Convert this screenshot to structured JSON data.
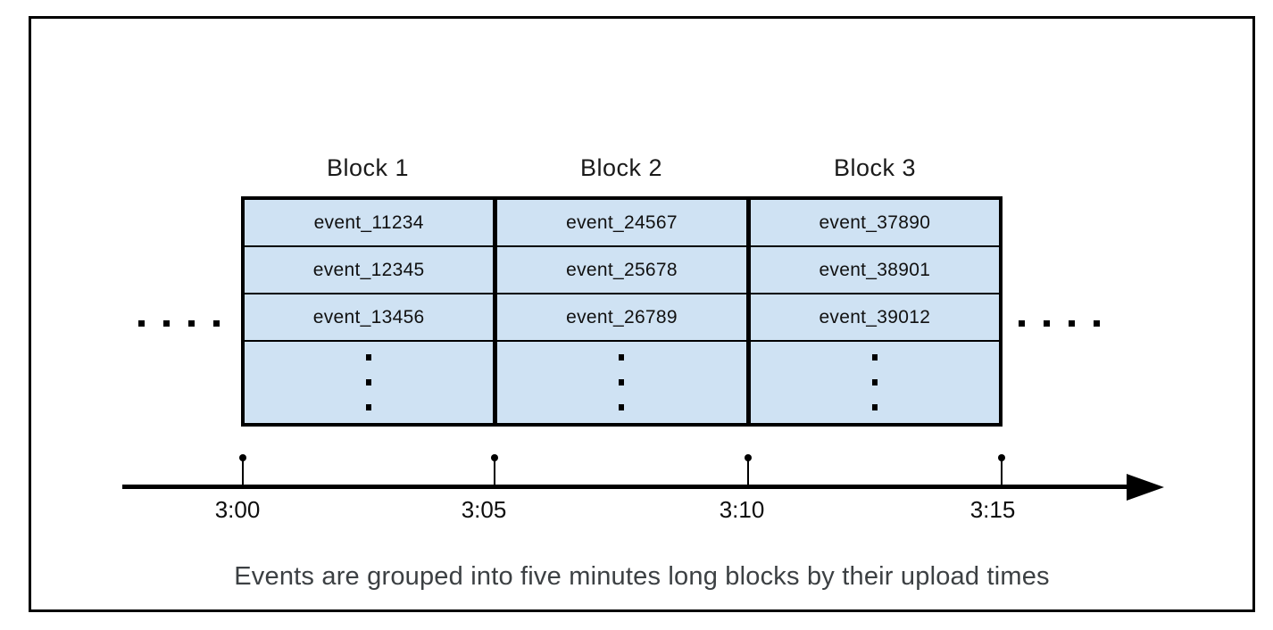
{
  "caption": "Events are grouped into five minutes long blocks by their upload times",
  "blocks": [
    {
      "title": "Block 1",
      "events": [
        "event_11234",
        "event_12345",
        "event_13456"
      ]
    },
    {
      "title": "Block 2",
      "events": [
        "event_24567",
        "event_25678",
        "event_26789"
      ]
    },
    {
      "title": "Block 3",
      "events": [
        "event_37890",
        "event_38901",
        "event_39012"
      ]
    }
  ],
  "timeline": {
    "tick_labels": [
      "3:00",
      "3:05",
      "3:10",
      "3:15"
    ]
  },
  "icons": {
    "left_continuation": "ellipsis-horizontal-icon",
    "right_continuation": "ellipsis-horizontal-icon",
    "more_events": "ellipsis-vertical-icon",
    "timeline_end": "arrow-right-icon"
  },
  "colors": {
    "block_fill": "#cfe2f3",
    "border": "#000000",
    "caption_text": "#3c4043"
  }
}
